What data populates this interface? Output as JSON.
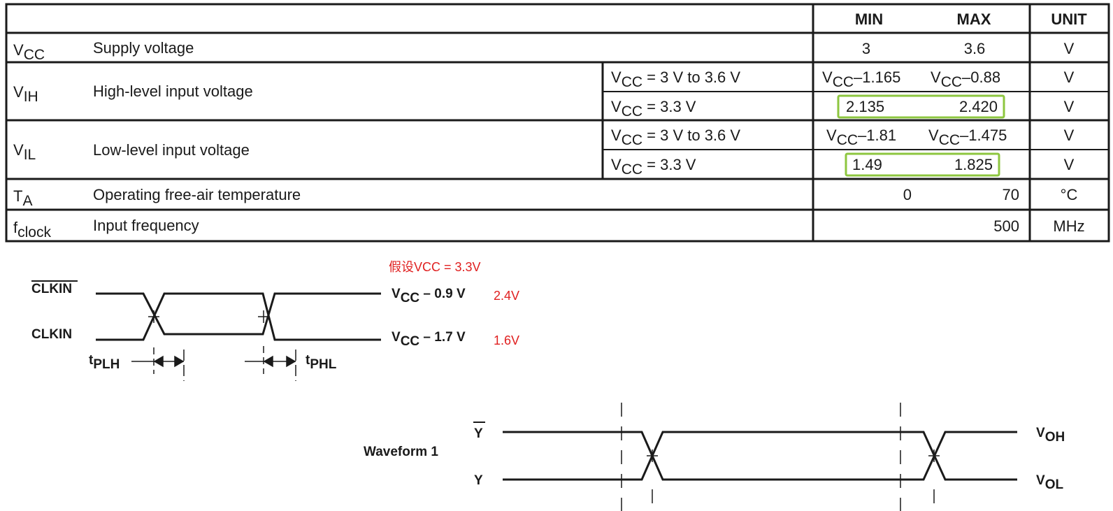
{
  "table": {
    "headers": {
      "min": "MIN",
      "max": "MAX",
      "unit": "UNIT"
    },
    "rows": [
      {
        "sym": "V",
        "sub": "CC",
        "desc": "Supply voltage",
        "min": "3",
        "max": "3.6",
        "unit": "V"
      },
      {
        "sym": "V",
        "sub": "IH",
        "desc": "High-level input voltage",
        "conds": [
          {
            "sym": "V",
            "sub": "CC",
            "text": " = 3 V to 3.6 V",
            "min_sym": "V",
            "min_sub": "CC",
            "min_val": "–1.165",
            "max_sym": "V",
            "max_sub": "CC",
            "max_val": "–0.88",
            "unit": "V"
          },
          {
            "sym": "V",
            "sub": "CC",
            "text": " = 3.3 V",
            "min": "2.135",
            "max": "2.420",
            "unit": "V",
            "highlight": true
          }
        ]
      },
      {
        "sym": "V",
        "sub": "IL",
        "desc": "Low-level input voltage",
        "conds": [
          {
            "sym": "V",
            "sub": "CC",
            "text": " = 3 V to 3.6 V",
            "min_sym": "V",
            "min_sub": "CC",
            "min_val": "–1.81",
            "max_sym": "V",
            "max_sub": "CC",
            "max_val": "–1.475",
            "unit": "V"
          },
          {
            "sym": "V",
            "sub": "CC",
            "text": " = 3.3 V",
            "min": "1.49",
            "max": "1.825",
            "unit": "V",
            "highlight": true
          }
        ]
      },
      {
        "sym": "T",
        "sub": "A",
        "desc": "Operating free-air temperature",
        "min": "0",
        "max": "70",
        "unit": "°C"
      },
      {
        "sym": "f",
        "sub": "clock",
        "desc": "Input frequency",
        "min": "",
        "max": "500",
        "unit": "MHz"
      }
    ],
    "highlight_color": "#8dc63f"
  },
  "waveform_clk": {
    "note": "假设VCC = 3.3V",
    "top_signal": "CLKIN",
    "bottom_signal": "CLKIN",
    "top_level": {
      "sym": "V",
      "sub": "CC",
      "rest": " – 0.9 V",
      "annot": "2.4V"
    },
    "bottom_level": {
      "sym": "V",
      "sub": "CC",
      "rest": " – 1.7 V",
      "annot": "1.6V"
    },
    "tplh": {
      "sym": "t",
      "sub": "PLH"
    },
    "tphl": {
      "sym": "t",
      "sub": "PHL"
    },
    "annot_color": "#e02020"
  },
  "waveform_out": {
    "label": "Waveform 1",
    "top_signal": "Y",
    "bottom_signal": "Y",
    "top_level": {
      "sym": "V",
      "sub": "OH"
    },
    "bottom_level": {
      "sym": "V",
      "sub": "OL"
    }
  }
}
